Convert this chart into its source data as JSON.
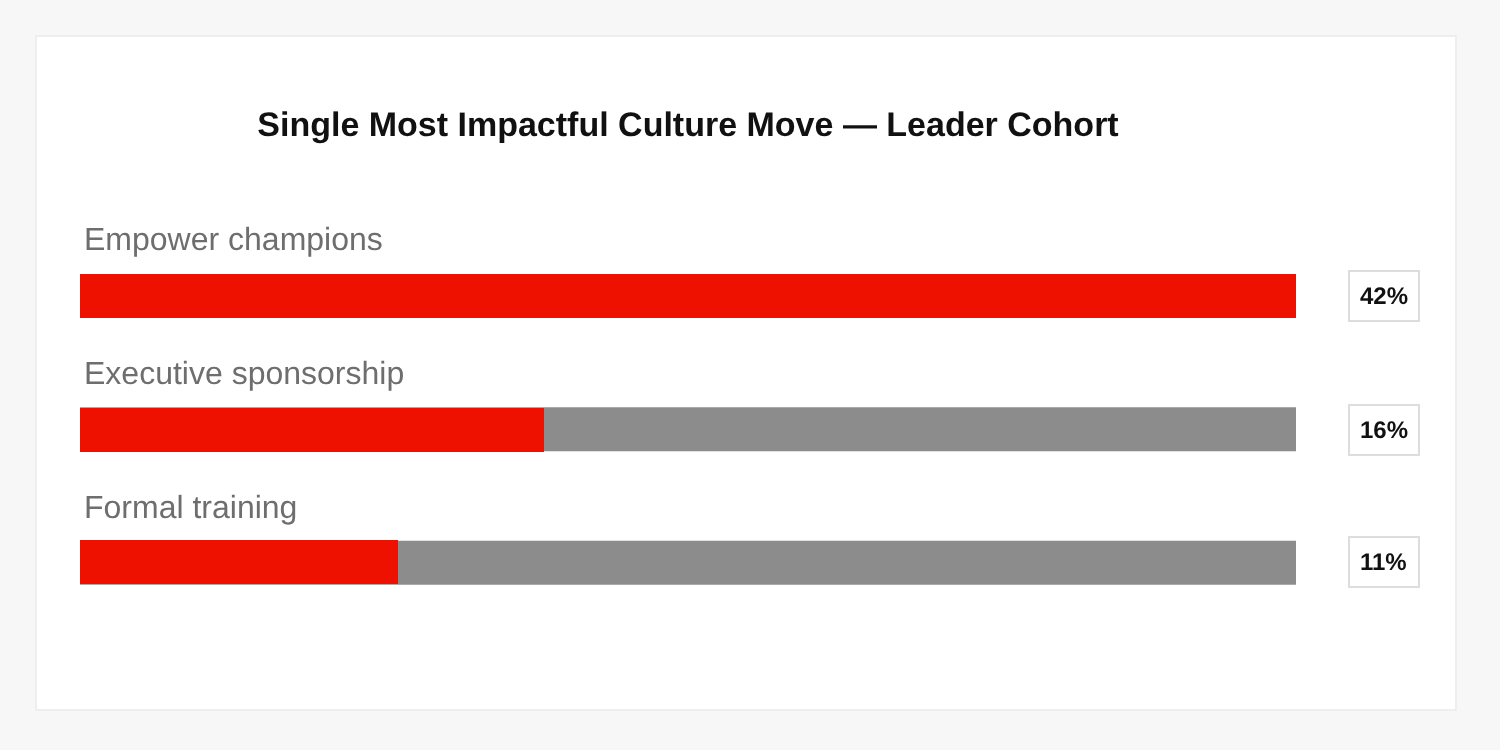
{
  "chart_data": {
    "type": "bar",
    "orientation": "horizontal",
    "title": "Single Most Impactful Culture Move — Leader Cohort",
    "categories": [
      "Empower champions",
      "Executive sponsorship",
      "Formal training"
    ],
    "values": [
      42,
      16,
      11
    ],
    "color": "#ee1100",
    "value_labels": [
      "42%",
      "16%",
      "11%"
    ],
    "xlim": [
      0,
      42
    ],
    "tick_labels": false,
    "grid": false,
    "legend": false
  }
}
